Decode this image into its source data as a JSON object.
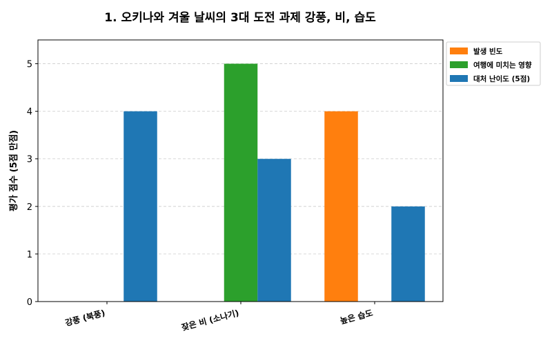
{
  "chart_data": {
    "type": "bar",
    "title": "1. 오키나와 겨울 날씨의 3대 도전 과제 강풍, 비, 습도",
    "xlabel": "",
    "ylabel": "평가 점수 (5점 만점)",
    "categories": [
      "강풍 (북풍)",
      "잦은 비 (소나기)",
      "높은 습도"
    ],
    "series": [
      {
        "name": "발생 빈도",
        "color": "#ff7f0e",
        "values": [
          0,
          0,
          4
        ]
      },
      {
        "name": "여행에 미치는 영향",
        "color": "#2ca02c",
        "values": [
          0,
          5,
          0
        ]
      },
      {
        "name": "대처 난이도 (5점)",
        "color": "#1f77b4",
        "values": [
          4,
          3,
          2
        ]
      }
    ],
    "ylim": [
      0,
      5.5
    ],
    "yticks": [
      "0",
      "1",
      "2",
      "3",
      "4",
      "5"
    ],
    "grid": "y-dashed",
    "legend": "outside-top-right"
  }
}
